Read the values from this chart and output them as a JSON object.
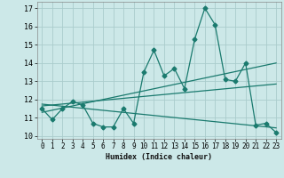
{
  "xlabel": "Humidex (Indice chaleur)",
  "xlim": [
    -0.5,
    23.5
  ],
  "ylim": [
    9.85,
    17.35
  ],
  "yticks": [
    10,
    11,
    12,
    13,
    14,
    15,
    16,
    17
  ],
  "xticks": [
    0,
    1,
    2,
    3,
    4,
    5,
    6,
    7,
    8,
    9,
    10,
    11,
    12,
    13,
    14,
    15,
    16,
    17,
    18,
    19,
    20,
    21,
    22,
    23
  ],
  "bg_color": "#cce8e8",
  "grid_color": "#aacccc",
  "line_color": "#1a7a6e",
  "main_x": [
    0,
    1,
    2,
    3,
    4,
    5,
    6,
    7,
    8,
    9,
    10,
    11,
    12,
    13,
    14,
    15,
    16,
    17,
    18,
    19,
    20,
    21,
    22,
    23
  ],
  "main_y": [
    11.5,
    10.9,
    11.5,
    11.9,
    11.7,
    10.7,
    10.5,
    10.5,
    11.5,
    10.7,
    13.5,
    14.7,
    13.3,
    13.7,
    12.6,
    15.3,
    17.0,
    16.1,
    13.1,
    13.0,
    14.0,
    10.6,
    10.7,
    10.2
  ],
  "trend1_x": [
    0,
    23
  ],
  "trend1_y": [
    11.3,
    14.0
  ],
  "trend2_x": [
    0,
    23
  ],
  "trend2_y": [
    11.65,
    12.85
  ],
  "trend3_x": [
    0,
    23
  ],
  "trend3_y": [
    11.75,
    10.45
  ]
}
